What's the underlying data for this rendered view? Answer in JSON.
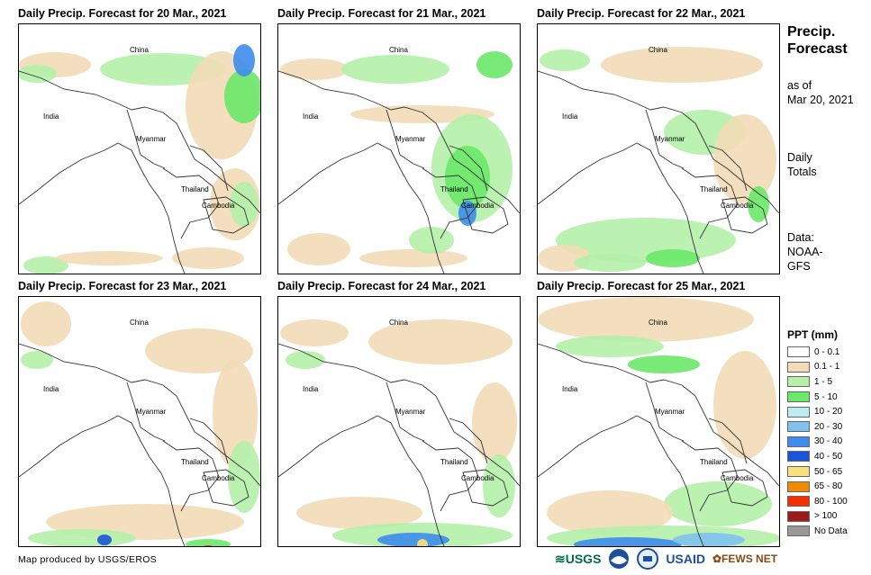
{
  "panels": [
    {
      "title": "Daily Precip. Forecast for 20 Mar., 2021"
    },
    {
      "title": "Daily Precip. Forecast for 21 Mar., 2021"
    },
    {
      "title": "Daily Precip. Forecast for 22 Mar., 2021"
    },
    {
      "title": "Daily Precip. Forecast for 23 Mar., 2021"
    },
    {
      "title": "Daily Precip. Forecast for 24 Mar., 2021"
    },
    {
      "title": "Daily Precip. Forecast for 25 Mar., 2021"
    }
  ],
  "map_labels": {
    "china": "China",
    "india": "India",
    "myanmar": "Myanmar",
    "thailand": "Thailand",
    "cambodia": "Cambodia"
  },
  "side": {
    "title_line1": "Precip.",
    "title_line2": "Forecast",
    "asof_line1": "as of",
    "asof_line2": "Mar 20, 2021",
    "daily_line1": "Daily",
    "daily_line2": "Totals",
    "data_line1": "Data:",
    "data_line2": "NOAA-",
    "data_line3": "GFS"
  },
  "legend": {
    "title": "PPT (mm)",
    "items": [
      {
        "label": "0 - 0.1",
        "color": "#ffffff"
      },
      {
        "label": "0.1 - 1",
        "color": "#f2dcb6"
      },
      {
        "label": "1 - 5",
        "color": "#b4f0a8"
      },
      {
        "label": "5 - 10",
        "color": "#6ae868"
      },
      {
        "label": "10 - 20",
        "color": "#bdeef6"
      },
      {
        "label": "20 - 30",
        "color": "#7fc2ee"
      },
      {
        "label": "30 - 40",
        "color": "#3e8cec"
      },
      {
        "label": "40 - 50",
        "color": "#1a55d8"
      },
      {
        "label": "50 - 65",
        "color": "#f8e07a"
      },
      {
        "label": "65 - 80",
        "color": "#f08a00"
      },
      {
        "label": "80 - 100",
        "color": "#f03000"
      },
      {
        "label": "> 100",
        "color": "#a01818"
      },
      {
        "label": "No Data",
        "color": "#999999"
      }
    ]
  },
  "credit": "Map produced by USGS/EROS",
  "logos": {
    "usgs": "USGS",
    "usaid": "USAID",
    "fewsnet": "FEWS NET"
  }
}
